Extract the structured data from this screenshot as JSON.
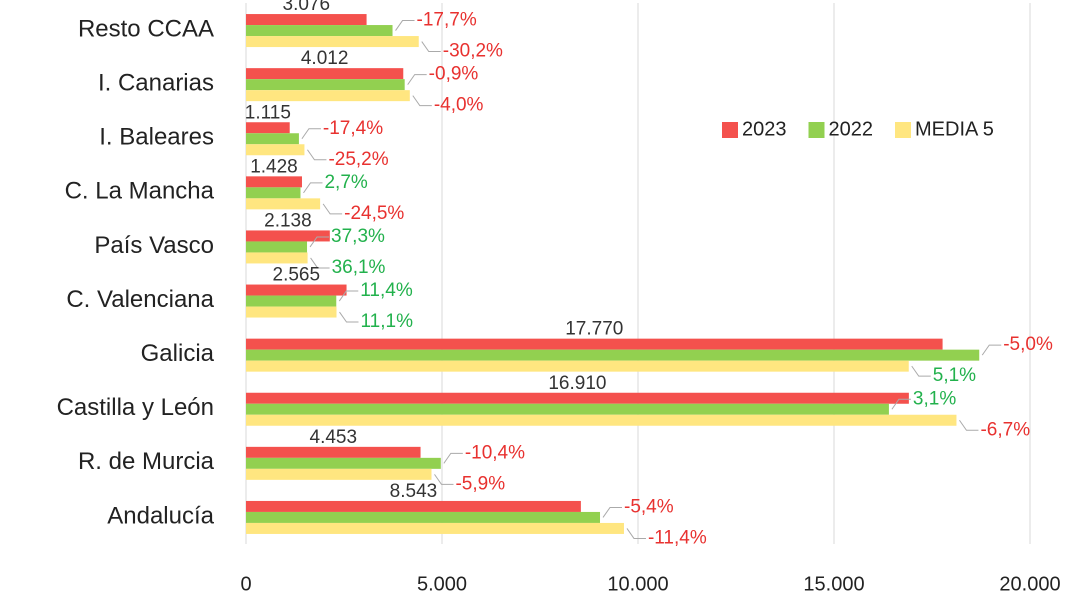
{
  "chart_data": {
    "type": "hbar",
    "categories": [
      "Resto CCAA",
      "I. Canarias",
      "I. Baleares",
      "C. La Mancha",
      "País Vasco",
      "C. Valenciana ",
      "Galicia",
      "Castilla y León",
      "R. de Murcia",
      "Andalucía"
    ],
    "series": [
      {
        "name": "2023",
        "color": "#f4514d",
        "values": [
          3076,
          4012,
          1115,
          1428,
          2138,
          2565,
          17770,
          16910,
          4453,
          8543
        ],
        "value_labels": [
          "3.076",
          "4.012",
          "1.115",
          "1.428",
          "2.138",
          "2.565",
          "17.770",
          "16.910",
          "4.453",
          "8.543"
        ]
      },
      {
        "name": "2022",
        "color": "#92d050",
        "values": [
          3738,
          4048,
          1350,
          1390,
          1557,
          2303,
          18705,
          16401,
          4970,
          9031
        ],
        "change_labels": [
          "-17,7%",
          "-0,9%",
          "-17,4%",
          "2,7%",
          "37,3%",
          "11,4%",
          "-5,0%",
          "3,1%",
          "-10,4%",
          "-5,4%"
        ]
      },
      {
        "name": "MEDIA 5",
        "color": "#ffe680",
        "values": [
          4407,
          4179,
          1491,
          1891,
          1571,
          2309,
          16907,
          18124,
          4732,
          9642
        ],
        "change_labels": [
          "-30,2%",
          "-4,0%",
          "-25,2%",
          "-24,5%",
          "36,1%",
          "11,1%",
          "5,1%",
          "-6,7%",
          "-5,9%",
          "-11,4%"
        ]
      }
    ],
    "negative_color": "#e8312f",
    "positive_color": "#22b14c",
    "xlim": [
      0,
      20000
    ],
    "xticks": [
      0,
      {
        "value": 5000,
        "label": "5.000"
      },
      {
        "value": 10000,
        "label": "10.000"
      },
      {
        "value": 15000,
        "label": "15.000"
      },
      {
        "value": 20000,
        "label": "20.000"
      }
    ],
    "grid": true,
    "legend": "upper right"
  }
}
